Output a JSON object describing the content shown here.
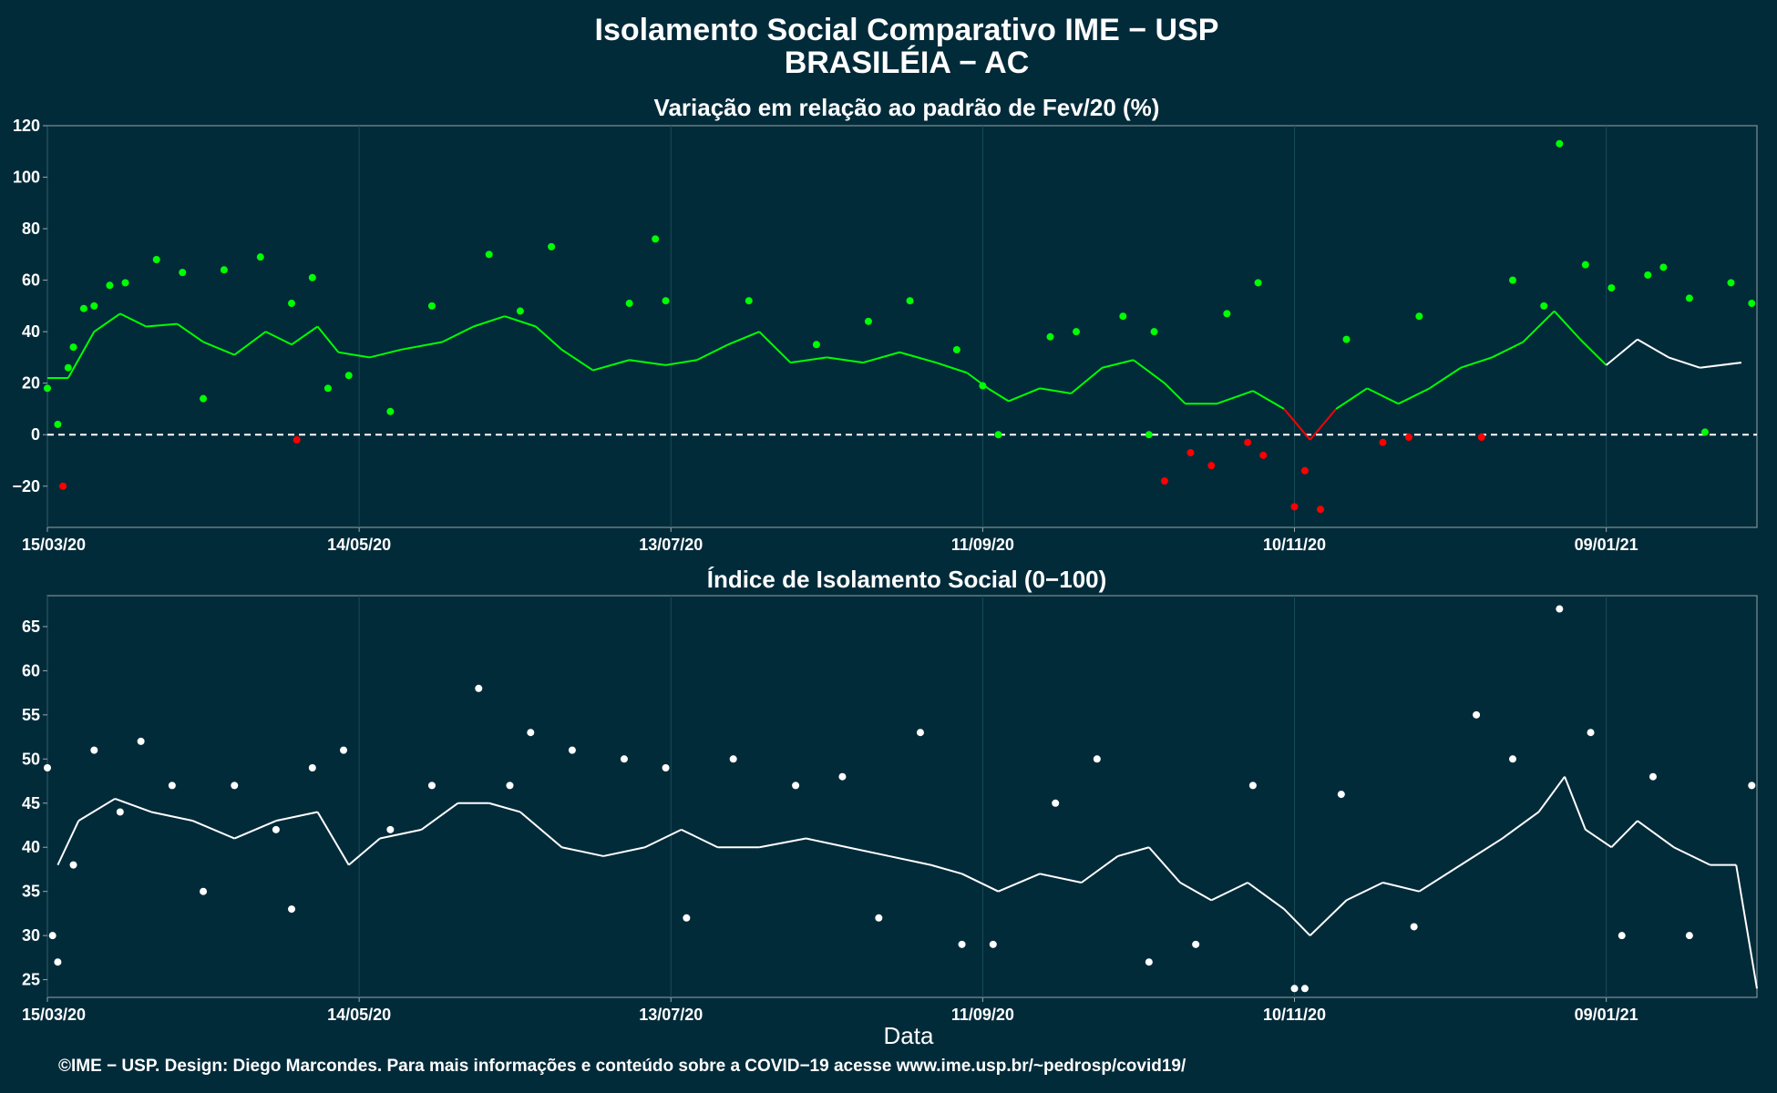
{
  "header": {
    "title_line1": "Isolamento Social Comparativo IME − USP",
    "title_line2": "BRASILÉIA − AC"
  },
  "footer": {
    "xlabel": "Data",
    "credit": "©IME − USP. Design: Diego Marcondes. Para mais informações e conteúdo sobre a COVID−19 acesse www.ime.usp.br/~pedrosp/covid19/"
  },
  "colors": {
    "background": "#022b3a",
    "positive": "#00ff00",
    "negative": "#ff0000",
    "index": "#ffffff"
  },
  "chart_data": [
    {
      "type": "scatter",
      "title": "Variação em relação ao padrão de Fev/20 (%)",
      "xlabel": "",
      "ylabel": "",
      "x_range": [
        "2020-03-15",
        "2021-02-07"
      ],
      "ylim": [
        -36,
        120
      ],
      "yticks": [
        -20,
        0,
        20,
        40,
        60,
        80,
        100,
        120
      ],
      "ytick_labels": [
        "−20",
        "0",
        "20",
        "40",
        "60",
        "80",
        "100",
        "120"
      ],
      "xticks": [
        "2020-03-15",
        "2020-05-14",
        "2020-07-13",
        "2020-09-11",
        "2020-11-10",
        "2021-01-09"
      ],
      "xtick_labels": [
        "15/03/20",
        "14/05/20",
        "13/07/20",
        "11/09/20",
        "10/11/20",
        "09/01/21"
      ],
      "reference_line": 0,
      "grid": true,
      "legend": "none",
      "series_points": [
        {
          "date": "2020-03-15",
          "value": 18
        },
        {
          "date": "2020-03-17",
          "value": 4
        },
        {
          "date": "2020-03-18",
          "value": -20
        },
        {
          "date": "2020-03-19",
          "value": 26
        },
        {
          "date": "2020-03-20",
          "value": 34
        },
        {
          "date": "2020-03-22",
          "value": 49
        },
        {
          "date": "2020-03-24",
          "value": 50
        },
        {
          "date": "2020-03-27",
          "value": 58
        },
        {
          "date": "2020-03-30",
          "value": 59
        },
        {
          "date": "2020-04-05",
          "value": 68
        },
        {
          "date": "2020-04-10",
          "value": 63
        },
        {
          "date": "2020-04-14",
          "value": 14
        },
        {
          "date": "2020-04-18",
          "value": 64
        },
        {
          "date": "2020-04-25",
          "value": 69
        },
        {
          "date": "2020-05-01",
          "value": 51
        },
        {
          "date": "2020-05-05",
          "value": 61
        },
        {
          "date": "2020-05-08",
          "value": 18
        },
        {
          "date": "2020-05-02",
          "value": -2
        },
        {
          "date": "2020-05-12",
          "value": 23
        },
        {
          "date": "2020-05-20",
          "value": 9
        },
        {
          "date": "2020-05-28",
          "value": 50
        },
        {
          "date": "2020-06-08",
          "value": 70
        },
        {
          "date": "2020-06-14",
          "value": 48
        },
        {
          "date": "2020-06-20",
          "value": 73
        },
        {
          "date": "2020-07-05",
          "value": 51
        },
        {
          "date": "2020-07-12",
          "value": 52
        },
        {
          "date": "2020-07-10",
          "value": 76
        },
        {
          "date": "2020-07-28",
          "value": 52
        },
        {
          "date": "2020-08-10",
          "value": 35
        },
        {
          "date": "2020-08-20",
          "value": 44
        },
        {
          "date": "2020-08-28",
          "value": 52
        },
        {
          "date": "2020-09-06",
          "value": 33
        },
        {
          "date": "2020-09-11",
          "value": 19
        },
        {
          "date": "2020-09-14",
          "value": 0
        },
        {
          "date": "2020-09-24",
          "value": 38
        },
        {
          "date": "2020-09-29",
          "value": 40
        },
        {
          "date": "2020-10-08",
          "value": 46
        },
        {
          "date": "2020-10-14",
          "value": 40
        },
        {
          "date": "2020-10-13",
          "value": 0
        },
        {
          "date": "2020-10-16",
          "value": -18
        },
        {
          "date": "2020-10-21",
          "value": -7
        },
        {
          "date": "2020-10-25",
          "value": -12
        },
        {
          "date": "2020-10-28",
          "value": 47
        },
        {
          "date": "2020-11-03",
          "value": 59
        },
        {
          "date": "2020-11-01",
          "value": -3
        },
        {
          "date": "2020-11-04",
          "value": -8
        },
        {
          "date": "2020-11-10",
          "value": -28
        },
        {
          "date": "2020-11-12",
          "value": -14
        },
        {
          "date": "2020-11-15",
          "value": -29
        },
        {
          "date": "2020-11-20",
          "value": 37
        },
        {
          "date": "2020-11-27",
          "value": -3
        },
        {
          "date": "2020-12-02",
          "value": -1
        },
        {
          "date": "2020-12-04",
          "value": 46
        },
        {
          "date": "2020-12-16",
          "value": -1
        },
        {
          "date": "2020-12-22",
          "value": 60
        },
        {
          "date": "2020-12-28",
          "value": 50
        },
        {
          "date": "2020-12-31",
          "value": 113
        },
        {
          "date": "2021-01-05",
          "value": 66
        },
        {
          "date": "2021-01-10",
          "value": 57
        },
        {
          "date": "2021-01-17",
          "value": 62
        },
        {
          "date": "2021-01-20",
          "value": 65
        },
        {
          "date": "2021-01-25",
          "value": 53
        },
        {
          "date": "2021-01-28",
          "value": 1
        },
        {
          "date": "2021-02-02",
          "value": 59
        },
        {
          "date": "2021-02-06",
          "value": 51
        }
      ],
      "trend_points": [
        {
          "date": "2020-03-15",
          "value": 22
        },
        {
          "date": "2020-03-19",
          "value": 22
        },
        {
          "date": "2020-03-24",
          "value": 40
        },
        {
          "date": "2020-03-29",
          "value": 47
        },
        {
          "date": "2020-04-03",
          "value": 42
        },
        {
          "date": "2020-04-09",
          "value": 43
        },
        {
          "date": "2020-04-14",
          "value": 36
        },
        {
          "date": "2020-04-20",
          "value": 31
        },
        {
          "date": "2020-04-26",
          "value": 40
        },
        {
          "date": "2020-05-01",
          "value": 35
        },
        {
          "date": "2020-05-06",
          "value": 42
        },
        {
          "date": "2020-05-10",
          "value": 32
        },
        {
          "date": "2020-05-16",
          "value": 30
        },
        {
          "date": "2020-05-22",
          "value": 33
        },
        {
          "date": "2020-05-30",
          "value": 36
        },
        {
          "date": "2020-06-05",
          "value": 42
        },
        {
          "date": "2020-06-11",
          "value": 46
        },
        {
          "date": "2020-06-17",
          "value": 42
        },
        {
          "date": "2020-06-22",
          "value": 33
        },
        {
          "date": "2020-06-28",
          "value": 25
        },
        {
          "date": "2020-07-05",
          "value": 29
        },
        {
          "date": "2020-07-12",
          "value": 27
        },
        {
          "date": "2020-07-18",
          "value": 29
        },
        {
          "date": "2020-07-24",
          "value": 35
        },
        {
          "date": "2020-07-30",
          "value": 40
        },
        {
          "date": "2020-08-05",
          "value": 28
        },
        {
          "date": "2020-08-12",
          "value": 30
        },
        {
          "date": "2020-08-19",
          "value": 28
        },
        {
          "date": "2020-08-26",
          "value": 32
        },
        {
          "date": "2020-09-02",
          "value": 28
        },
        {
          "date": "2020-09-08",
          "value": 24
        },
        {
          "date": "2020-09-12",
          "value": 18
        },
        {
          "date": "2020-09-16",
          "value": 13
        },
        {
          "date": "2020-09-22",
          "value": 18
        },
        {
          "date": "2020-09-28",
          "value": 16
        },
        {
          "date": "2020-10-04",
          "value": 26
        },
        {
          "date": "2020-10-10",
          "value": 29
        },
        {
          "date": "2020-10-16",
          "value": 20
        },
        {
          "date": "2020-10-20",
          "value": 12
        },
        {
          "date": "2020-10-26",
          "value": 12
        },
        {
          "date": "2020-11-02",
          "value": 17
        },
        {
          "date": "2020-11-08",
          "value": 10
        },
        {
          "date": "2020-11-13",
          "value": -2
        },
        {
          "date": "2020-11-18",
          "value": 10
        },
        {
          "date": "2020-11-24",
          "value": 18
        },
        {
          "date": "2020-11-30",
          "value": 12
        },
        {
          "date": "2020-12-06",
          "value": 18
        },
        {
          "date": "2020-12-12",
          "value": 26
        },
        {
          "date": "2020-12-18",
          "value": 30
        },
        {
          "date": "2020-12-24",
          "value": 36
        },
        {
          "date": "2020-12-30",
          "value": 48
        },
        {
          "date": "2021-01-04",
          "value": 37
        },
        {
          "date": "2021-01-09",
          "value": 27
        },
        {
          "date": "2021-01-15",
          "value": 37
        },
        {
          "date": "2021-01-21",
          "value": 30
        },
        {
          "date": "2021-01-27",
          "value": 26
        },
        {
          "date": "2021-02-04",
          "value": 28
        }
      ]
    },
    {
      "type": "scatter",
      "title": "Índice de Isolamento Social (0−100)",
      "xlabel": "Data",
      "ylabel": "",
      "x_range": [
        "2020-03-15",
        "2021-02-07"
      ],
      "ylim": [
        23,
        68.5
      ],
      "yticks": [
        25,
        30,
        35,
        40,
        45,
        50,
        55,
        60,
        65
      ],
      "ytick_labels": [
        "25",
        "30",
        "35",
        "40",
        "45",
        "50",
        "55",
        "60",
        "65"
      ],
      "xticks": [
        "2020-03-15",
        "2020-05-14",
        "2020-07-13",
        "2020-09-11",
        "2020-11-10",
        "2021-01-09"
      ],
      "xtick_labels": [
        "15/03/20",
        "14/05/20",
        "13/07/20",
        "11/09/20",
        "10/11/20",
        "09/01/21"
      ],
      "grid": true,
      "legend": "none",
      "series_points": [
        {
          "date": "2020-03-15",
          "value": 49
        },
        {
          "date": "2020-03-16",
          "value": 30
        },
        {
          "date": "2020-03-17",
          "value": 27
        },
        {
          "date": "2020-03-20",
          "value": 38
        },
        {
          "date": "2020-03-24",
          "value": 51
        },
        {
          "date": "2020-03-29",
          "value": 44
        },
        {
          "date": "2020-04-02",
          "value": 52
        },
        {
          "date": "2020-04-08",
          "value": 47
        },
        {
          "date": "2020-04-14",
          "value": 35
        },
        {
          "date": "2020-04-20",
          "value": 47
        },
        {
          "date": "2020-04-28",
          "value": 42
        },
        {
          "date": "2020-05-01",
          "value": 33
        },
        {
          "date": "2020-05-05",
          "value": 49
        },
        {
          "date": "2020-05-11",
          "value": 51
        },
        {
          "date": "2020-05-20",
          "value": 42
        },
        {
          "date": "2020-05-28",
          "value": 47
        },
        {
          "date": "2020-06-06",
          "value": 58
        },
        {
          "date": "2020-06-12",
          "value": 47
        },
        {
          "date": "2020-06-16",
          "value": 53
        },
        {
          "date": "2020-06-24",
          "value": 51
        },
        {
          "date": "2020-07-04",
          "value": 50
        },
        {
          "date": "2020-07-12",
          "value": 49
        },
        {
          "date": "2020-07-16",
          "value": 32
        },
        {
          "date": "2020-07-25",
          "value": 50
        },
        {
          "date": "2020-08-06",
          "value": 47
        },
        {
          "date": "2020-08-15",
          "value": 48
        },
        {
          "date": "2020-08-22",
          "value": 32
        },
        {
          "date": "2020-08-30",
          "value": 53
        },
        {
          "date": "2020-09-07",
          "value": 29
        },
        {
          "date": "2020-09-13",
          "value": 29
        },
        {
          "date": "2020-09-25",
          "value": 45
        },
        {
          "date": "2020-10-03",
          "value": 50
        },
        {
          "date": "2020-10-13",
          "value": 27
        },
        {
          "date": "2020-10-22",
          "value": 29
        },
        {
          "date": "2020-11-02",
          "value": 47
        },
        {
          "date": "2020-11-10",
          "value": 24
        },
        {
          "date": "2020-11-12",
          "value": 24
        },
        {
          "date": "2020-11-19",
          "value": 46
        },
        {
          "date": "2020-12-03",
          "value": 31
        },
        {
          "date": "2020-12-15",
          "value": 55
        },
        {
          "date": "2020-12-22",
          "value": 50
        },
        {
          "date": "2020-12-31",
          "value": 67
        },
        {
          "date": "2021-01-06",
          "value": 53
        },
        {
          "date": "2021-01-12",
          "value": 30
        },
        {
          "date": "2021-01-18",
          "value": 48
        },
        {
          "date": "2021-01-25",
          "value": 30
        },
        {
          "date": "2021-02-06",
          "value": 47
        }
      ],
      "trend_points": [
        {
          "date": "2020-03-17",
          "value": 38
        },
        {
          "date": "2020-03-21",
          "value": 43
        },
        {
          "date": "2020-03-28",
          "value": 45.5
        },
        {
          "date": "2020-04-04",
          "value": 44
        },
        {
          "date": "2020-04-12",
          "value": 43
        },
        {
          "date": "2020-04-20",
          "value": 41
        },
        {
          "date": "2020-04-28",
          "value": 43
        },
        {
          "date": "2020-05-06",
          "value": 44
        },
        {
          "date": "2020-05-12",
          "value": 38
        },
        {
          "date": "2020-05-18",
          "value": 41
        },
        {
          "date": "2020-05-26",
          "value": 42
        },
        {
          "date": "2020-06-02",
          "value": 45
        },
        {
          "date": "2020-06-08",
          "value": 45
        },
        {
          "date": "2020-06-14",
          "value": 44
        },
        {
          "date": "2020-06-22",
          "value": 40
        },
        {
          "date": "2020-06-30",
          "value": 39
        },
        {
          "date": "2020-07-08",
          "value": 40
        },
        {
          "date": "2020-07-15",
          "value": 42
        },
        {
          "date": "2020-07-22",
          "value": 40
        },
        {
          "date": "2020-07-30",
          "value": 40
        },
        {
          "date": "2020-08-08",
          "value": 41
        },
        {
          "date": "2020-08-16",
          "value": 40
        },
        {
          "date": "2020-08-24",
          "value": 39
        },
        {
          "date": "2020-09-01",
          "value": 38
        },
        {
          "date": "2020-09-07",
          "value": 37
        },
        {
          "date": "2020-09-14",
          "value": 35
        },
        {
          "date": "2020-09-22",
          "value": 37
        },
        {
          "date": "2020-09-30",
          "value": 36
        },
        {
          "date": "2020-10-07",
          "value": 39
        },
        {
          "date": "2020-10-13",
          "value": 40
        },
        {
          "date": "2020-10-19",
          "value": 36
        },
        {
          "date": "2020-10-25",
          "value": 34
        },
        {
          "date": "2020-11-01",
          "value": 36
        },
        {
          "date": "2020-11-08",
          "value": 33
        },
        {
          "date": "2020-11-13",
          "value": 30
        },
        {
          "date": "2020-11-20",
          "value": 34
        },
        {
          "date": "2020-11-27",
          "value": 36
        },
        {
          "date": "2020-12-04",
          "value": 35
        },
        {
          "date": "2020-12-12",
          "value": 38
        },
        {
          "date": "2020-12-20",
          "value": 41
        },
        {
          "date": "2020-12-27",
          "value": 44
        },
        {
          "date": "2021-01-01",
          "value": 48
        },
        {
          "date": "2021-01-05",
          "value": 42
        },
        {
          "date": "2021-01-10",
          "value": 40
        },
        {
          "date": "2021-01-15",
          "value": 43
        },
        {
          "date": "2021-01-22",
          "value": 40
        },
        {
          "date": "2021-01-29",
          "value": 38
        },
        {
          "date": "2021-02-03",
          "value": 38
        },
        {
          "date": "2021-02-07",
          "value": 24
        }
      ]
    }
  ]
}
